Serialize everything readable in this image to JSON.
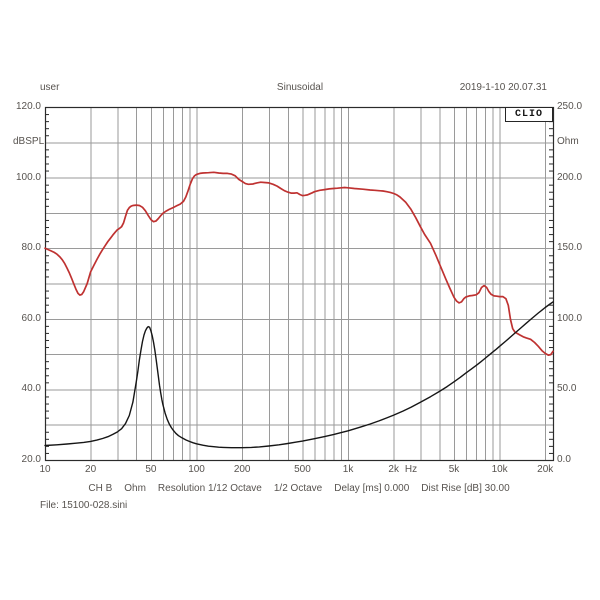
{
  "header": {
    "user_label": "user",
    "title": "Sinusoidal",
    "timestamp": "2019-1-10 20.07.31"
  },
  "branding": {
    "logo_text": "CLIO"
  },
  "footer": {
    "settings_segments": [
      "CH B",
      "Ohm",
      "Resolution 1/12 Octave",
      "1/2 Octave",
      "Delay [ms] 0.000",
      "Dist Rise [dB] 30.00"
    ],
    "file_label": "File: 15100-028.sini"
  },
  "colors": {
    "spl_curve": "#bf3231",
    "impedance_curve": "#161616",
    "gridline": "#9a9a9a",
    "plot_border": "#2b2b2b",
    "label_text": "#57534f"
  },
  "chart_data": {
    "type": "line",
    "title": "Sinusoidal",
    "grid": true,
    "x_axis": {
      "scale": "log",
      "min": 10,
      "max": 22500,
      "unit": "Hz",
      "unit_label_position": 2600,
      "tick_labels": [
        {
          "value": 10,
          "label": "10"
        },
        {
          "value": 20,
          "label": "20"
        },
        {
          "value": 50,
          "label": "50"
        },
        {
          "value": 100,
          "label": "100"
        },
        {
          "value": 200,
          "label": "200"
        },
        {
          "value": 500,
          "label": "500"
        },
        {
          "value": 1000,
          "label": "1k"
        },
        {
          "value": 2000,
          "label": "2k"
        },
        {
          "value": 5000,
          "label": "5k"
        },
        {
          "value": 10000,
          "label": "10k"
        },
        {
          "value": 20000,
          "label": "20k"
        }
      ]
    },
    "y_left": {
      "label": "dBSPL",
      "min": 20,
      "max": 120,
      "grid_step": 10,
      "minor_tick_step": 2,
      "tick_labels": [
        {
          "value": 120,
          "label": "120.0"
        },
        {
          "value": 100,
          "label": "100.0"
        },
        {
          "value": 80,
          "label": "80.0"
        },
        {
          "value": 60,
          "label": "60.0"
        },
        {
          "value": 40,
          "label": "40.0"
        },
        {
          "value": 20,
          "label": "20.0"
        }
      ]
    },
    "y_right": {
      "label": "Ohm",
      "min": 0,
      "max": 250,
      "minor_tick_step": 5,
      "tick_labels": [
        {
          "value": 250,
          "label": "250.0"
        },
        {
          "value": 200,
          "label": "200.0"
        },
        {
          "value": 150,
          "label": "150.0"
        },
        {
          "value": 100,
          "label": "100.0"
        },
        {
          "value": 50,
          "label": "50.0"
        },
        {
          "value": 0,
          "label": "0.0"
        }
      ]
    },
    "series": [
      {
        "name": "SPL response",
        "axis": "left",
        "unit": "dBSPL",
        "color": "#bf3231",
        "points": [
          [
            10,
            80.0
          ],
          [
            10.5,
            79.6
          ],
          [
            11,
            79.2
          ],
          [
            11.5,
            78.8
          ],
          [
            12,
            78.3
          ],
          [
            12.5,
            77.6
          ],
          [
            13,
            76.7
          ],
          [
            13.5,
            75.6
          ],
          [
            14,
            74.3
          ],
          [
            14.5,
            72.9
          ],
          [
            15,
            71.4
          ],
          [
            15.5,
            69.9
          ],
          [
            16,
            68.4
          ],
          [
            16.5,
            67.2
          ],
          [
            17,
            66.7
          ],
          [
            17.5,
            66.9
          ],
          [
            18,
            67.7
          ],
          [
            19,
            70.0
          ],
          [
            20,
            73.3
          ],
          [
            21,
            75.1
          ],
          [
            22,
            76.8
          ],
          [
            23,
            78.3
          ],
          [
            24,
            79.6
          ],
          [
            25,
            80.8
          ],
          [
            26,
            81.9
          ],
          [
            27,
            82.8
          ],
          [
            28,
            83.7
          ],
          [
            29,
            84.5
          ],
          [
            30,
            85.2
          ],
          [
            31,
            85.6
          ],
          [
            32,
            86.1
          ],
          [
            33,
            87.2
          ],
          [
            34,
            89.0
          ],
          [
            35,
            90.7
          ],
          [
            36,
            91.5
          ],
          [
            37,
            91.9
          ],
          [
            38,
            92.1
          ],
          [
            40,
            92.2
          ],
          [
            42,
            92.1
          ],
          [
            44,
            91.6
          ],
          [
            46,
            90.6
          ],
          [
            48,
            89.3
          ],
          [
            50,
            88.1
          ],
          [
            52,
            87.5
          ],
          [
            54,
            87.7
          ],
          [
            56,
            88.4
          ],
          [
            58,
            89.2
          ],
          [
            60,
            89.9
          ],
          [
            63,
            90.5
          ],
          [
            66,
            91.0
          ],
          [
            70,
            91.5
          ],
          [
            74,
            92.0
          ],
          [
            78,
            92.5
          ],
          [
            82,
            93.3
          ],
          [
            85,
            94.5
          ],
          [
            88,
            96.3
          ],
          [
            91,
            98.2
          ],
          [
            94,
            99.7
          ],
          [
            97,
            100.5
          ],
          [
            100,
            100.9
          ],
          [
            105,
            101.2
          ],
          [
            110,
            101.3
          ],
          [
            120,
            101.4
          ],
          [
            130,
            101.5
          ],
          [
            140,
            101.3
          ],
          [
            150,
            101.2
          ],
          [
            160,
            101.2
          ],
          [
            170,
            101.0
          ],
          [
            180,
            100.5
          ],
          [
            190,
            99.5
          ],
          [
            200,
            98.9
          ],
          [
            210,
            98.3
          ],
          [
            220,
            98.1
          ],
          [
            235,
            98.2
          ],
          [
            250,
            98.5
          ],
          [
            265,
            98.7
          ],
          [
            280,
            98.6
          ],
          [
            300,
            98.5
          ],
          [
            320,
            98.1
          ],
          [
            340,
            97.6
          ],
          [
            360,
            96.9
          ],
          [
            380,
            96.3
          ],
          [
            400,
            95.9
          ],
          [
            420,
            95.6
          ],
          [
            440,
            95.6
          ],
          [
            460,
            95.7
          ],
          [
            480,
            95.2
          ],
          [
            500,
            94.9
          ],
          [
            520,
            95.0
          ],
          [
            540,
            95.1
          ],
          [
            560,
            95.4
          ],
          [
            580,
            95.7
          ],
          [
            600,
            96.0
          ],
          [
            650,
            96.4
          ],
          [
            700,
            96.6
          ],
          [
            750,
            96.8
          ],
          [
            800,
            96.9
          ],
          [
            850,
            97.0
          ],
          [
            900,
            97.1
          ],
          [
            950,
            97.2
          ],
          [
            1000,
            97.1
          ],
          [
            1100,
            96.9
          ],
          [
            1250,
            96.7
          ],
          [
            1400,
            96.5
          ],
          [
            1500,
            96.4
          ],
          [
            1600,
            96.3
          ],
          [
            1700,
            96.2
          ],
          [
            1800,
            96.0
          ],
          [
            1900,
            95.8
          ],
          [
            2000,
            95.5
          ],
          [
            2100,
            95.1
          ],
          [
            2200,
            94.5
          ],
          [
            2400,
            93.0
          ],
          [
            2600,
            91.0
          ],
          [
            2800,
            88.6
          ],
          [
            3000,
            86.1
          ],
          [
            3200,
            83.9
          ],
          [
            3500,
            81.4
          ],
          [
            3800,
            78.0
          ],
          [
            4100,
            74.6
          ],
          [
            4400,
            71.4
          ],
          [
            4700,
            68.6
          ],
          [
            5000,
            66.1
          ],
          [
            5200,
            65.0
          ],
          [
            5400,
            64.5
          ],
          [
            5600,
            64.8
          ],
          [
            5800,
            65.7
          ],
          [
            6000,
            66.2
          ],
          [
            6300,
            66.5
          ],
          [
            6600,
            66.6
          ],
          [
            7000,
            66.8
          ],
          [
            7300,
            67.4
          ],
          [
            7600,
            68.9
          ],
          [
            7900,
            69.4
          ],
          [
            8200,
            68.9
          ],
          [
            8500,
            67.7
          ],
          [
            8800,
            66.9
          ],
          [
            9200,
            66.5
          ],
          [
            9600,
            66.4
          ],
          [
            10000,
            66.3
          ],
          [
            10500,
            66.3
          ],
          [
            11000,
            65.7
          ],
          [
            11400,
            63.8
          ],
          [
            11800,
            59.8
          ],
          [
            12200,
            57.2
          ],
          [
            12600,
            56.3
          ],
          [
            13000,
            55.9
          ],
          [
            13600,
            55.4
          ],
          [
            14300,
            54.9
          ],
          [
            15000,
            54.6
          ],
          [
            16000,
            54.2
          ],
          [
            17000,
            53.3
          ],
          [
            18000,
            52.2
          ],
          [
            19000,
            51.0
          ],
          [
            20000,
            50.2
          ],
          [
            21000,
            49.7
          ],
          [
            21800,
            49.9
          ],
          [
            22500,
            50.8
          ]
        ]
      },
      {
        "name": "Impedance",
        "axis": "right",
        "unit": "Ohm",
        "color": "#161616",
        "points": [
          [
            10,
            10.3
          ],
          [
            12,
            10.8
          ],
          [
            14,
            11.3
          ],
          [
            16,
            11.9
          ],
          [
            18,
            12.5
          ],
          [
            20,
            13.2
          ],
          [
            22,
            14.1
          ],
          [
            24,
            15.2
          ],
          [
            26,
            16.5
          ],
          [
            28,
            18.1
          ],
          [
            30,
            19.8
          ],
          [
            32,
            22.2
          ],
          [
            34,
            25.8
          ],
          [
            36,
            31.5
          ],
          [
            38,
            41.0
          ],
          [
            40,
            55.0
          ],
          [
            41,
            63.0
          ],
          [
            42,
            71.0
          ],
          [
            43,
            78.0
          ],
          [
            44,
            84.0
          ],
          [
            45,
            88.5
          ],
          [
            46,
            91.5
          ],
          [
            47,
            93.5
          ],
          [
            48,
            94.5
          ],
          [
            49,
            94.0
          ],
          [
            50,
            91.5
          ],
          [
            51,
            88.0
          ],
          [
            52,
            83.5
          ],
          [
            53,
            78.0
          ],
          [
            54,
            72.0
          ],
          [
            55,
            65.5
          ],
          [
            56,
            59.0
          ],
          [
            57,
            53.0
          ],
          [
            58,
            47.5
          ],
          [
            59,
            43.0
          ],
          [
            60,
            39.2
          ],
          [
            62,
            33.2
          ],
          [
            64,
            28.8
          ],
          [
            66,
            25.6
          ],
          [
            68,
            23.1
          ],
          [
            70,
            21.2
          ],
          [
            73,
            18.9
          ],
          [
            76,
            17.2
          ],
          [
            80,
            15.7
          ],
          [
            85,
            14.2
          ],
          [
            90,
            13.1
          ],
          [
            95,
            12.2
          ],
          [
            100,
            11.5
          ],
          [
            110,
            10.5
          ],
          [
            120,
            9.8
          ],
          [
            130,
            9.4
          ],
          [
            140,
            9.1
          ],
          [
            150,
            8.9
          ],
          [
            170,
            8.7
          ],
          [
            200,
            8.7
          ],
          [
            230,
            8.9
          ],
          [
            260,
            9.3
          ],
          [
            300,
            9.9
          ],
          [
            350,
            10.8
          ],
          [
            400,
            11.7
          ],
          [
            450,
            12.6
          ],
          [
            500,
            13.4
          ],
          [
            600,
            15.1
          ],
          [
            700,
            16.6
          ],
          [
            800,
            18.0
          ],
          [
            900,
            19.4
          ],
          [
            1000,
            20.7
          ],
          [
            1200,
            23.2
          ],
          [
            1400,
            25.5
          ],
          [
            1600,
            27.7
          ],
          [
            1800,
            29.8
          ],
          [
            2000,
            31.8
          ],
          [
            2300,
            34.6
          ],
          [
            2600,
            37.3
          ],
          [
            3000,
            40.9
          ],
          [
            3500,
            44.8
          ],
          [
            4000,
            48.5
          ],
          [
            4500,
            52.0
          ],
          [
            5000,
            55.4
          ],
          [
            5500,
            58.6
          ],
          [
            6000,
            61.7
          ],
          [
            6500,
            64.4
          ],
          [
            7000,
            67.0
          ],
          [
            7500,
            69.5
          ],
          [
            8000,
            71.9
          ],
          [
            8500,
            74.2
          ],
          [
            9000,
            76.4
          ],
          [
            9500,
            78.5
          ],
          [
            10000,
            80.5
          ],
          [
            11000,
            84.3
          ],
          [
            12000,
            87.8
          ],
          [
            13000,
            91.1
          ],
          [
            14000,
            94.1
          ],
          [
            15000,
            96.9
          ],
          [
            16000,
            99.5
          ],
          [
            17000,
            101.9
          ],
          [
            18000,
            104.1
          ],
          [
            19000,
            106.1
          ],
          [
            20000,
            108.0
          ],
          [
            21500,
            110.5
          ],
          [
            22500,
            112.0
          ]
        ]
      }
    ]
  }
}
